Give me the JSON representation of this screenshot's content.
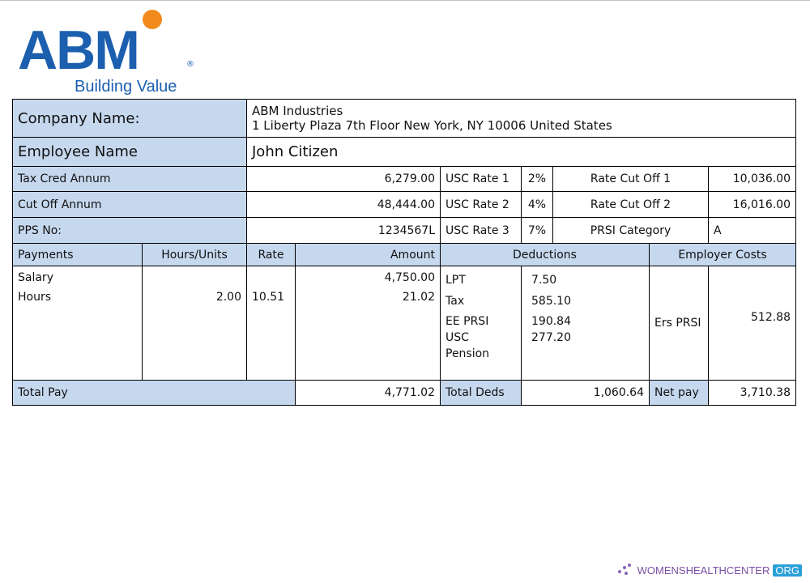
{
  "logo": {
    "brand": "ABM",
    "registered": "®",
    "tagline": "Building Value"
  },
  "company": {
    "label": "Company Name:",
    "name": "ABM Industries",
    "address": "1 Liberty Plaza 7th Floor New York, NY 10006 United States"
  },
  "employee": {
    "label": "Employee Name",
    "name": "John Citizen"
  },
  "info_rows": [
    {
      "label": "Tax Cred Annum",
      "value": "6,279.00",
      "usc_label": "USC Rate 1",
      "usc_rate": "2%",
      "cut_label": "Rate Cut Off 1",
      "cut_value": "10,036.00"
    },
    {
      "label": "Cut Off Annum",
      "value": "48,444.00",
      "usc_label": "USC Rate 2",
      "usc_rate": "4%",
      "cut_label": "Rate Cut Off 2",
      "cut_value": "16,016.00"
    },
    {
      "label": "PPS No:",
      "value": "1234567L",
      "usc_label": "USC Rate 3",
      "usc_rate": "7%",
      "cut_label": "PRSI Category",
      "cut_value": "A"
    }
  ],
  "headers": {
    "payments": "Payments",
    "hours": "Hours/Units",
    "rate": "Rate",
    "amount": "Amount",
    "deductions": "Deductions",
    "employer_costs": "Employer Costs"
  },
  "payments": [
    {
      "name": "Salary",
      "hours": "",
      "rate": "",
      "amount": "4,750.00"
    },
    {
      "name": "Hours",
      "hours": "2.00",
      "rate": "10.51",
      "amount": "21.02"
    }
  ],
  "deductions": {
    "names": [
      "LPT",
      "Tax",
      "EE PRSI",
      "USC",
      "Pension"
    ],
    "values": [
      "7.50",
      "585.10",
      "190.84",
      "277.20"
    ]
  },
  "employer": {
    "label": "Ers PRSI",
    "value": "512.88"
  },
  "totals": {
    "pay_label": "Total Pay",
    "pay_value": "4,771.02",
    "deds_label": "Total Deds",
    "deds_value": "1,060.64",
    "net_label": "Net pay",
    "net_value": "3,710.38"
  },
  "watermark": {
    "text": "WOMENSHEALTHCENTER",
    "tld": "ORG"
  }
}
